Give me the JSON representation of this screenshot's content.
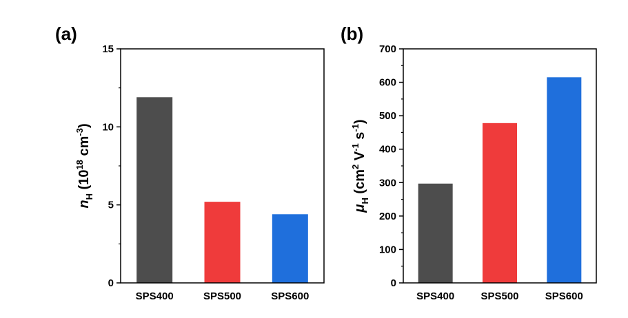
{
  "chart_data": [
    {
      "type": "bar",
      "panel_label": "(a)",
      "ylabel": {
        "symbol": "n",
        "subscript": "H",
        "unit_open": " (10",
        "unit_exp": "18",
        "unit_mid": " cm",
        "unit_exp2": "-3",
        "unit_close": ")"
      },
      "categories": [
        "SPS400",
        "SPS500",
        "SPS600"
      ],
      "values": [
        11.9,
        5.2,
        4.4
      ],
      "colors": [
        "#4d4d4d",
        "#ef3b3b",
        "#1f6fdc"
      ],
      "ylim": [
        0,
        15
      ],
      "yticks": [
        0,
        5,
        10,
        15
      ],
      "grid": false
    },
    {
      "type": "bar",
      "panel_label": "(b)",
      "ylabel": {
        "symbol": "μ",
        "subscript": "H",
        "unit_open": " (cm",
        "unit_exp": "2",
        "unit_mid": " V",
        "unit_exp2": "-1",
        "unit_mid2": " s",
        "unit_exp3": "-1",
        "unit_close": ")"
      },
      "categories": [
        "SPS400",
        "SPS500",
        "SPS600"
      ],
      "values": [
        297,
        478,
        615
      ],
      "colors": [
        "#4d4d4d",
        "#ef3b3b",
        "#1f6fdc"
      ],
      "ylim": [
        0,
        700
      ],
      "yticks": [
        0,
        100,
        200,
        300,
        400,
        500,
        600,
        700
      ],
      "grid": false
    }
  ]
}
